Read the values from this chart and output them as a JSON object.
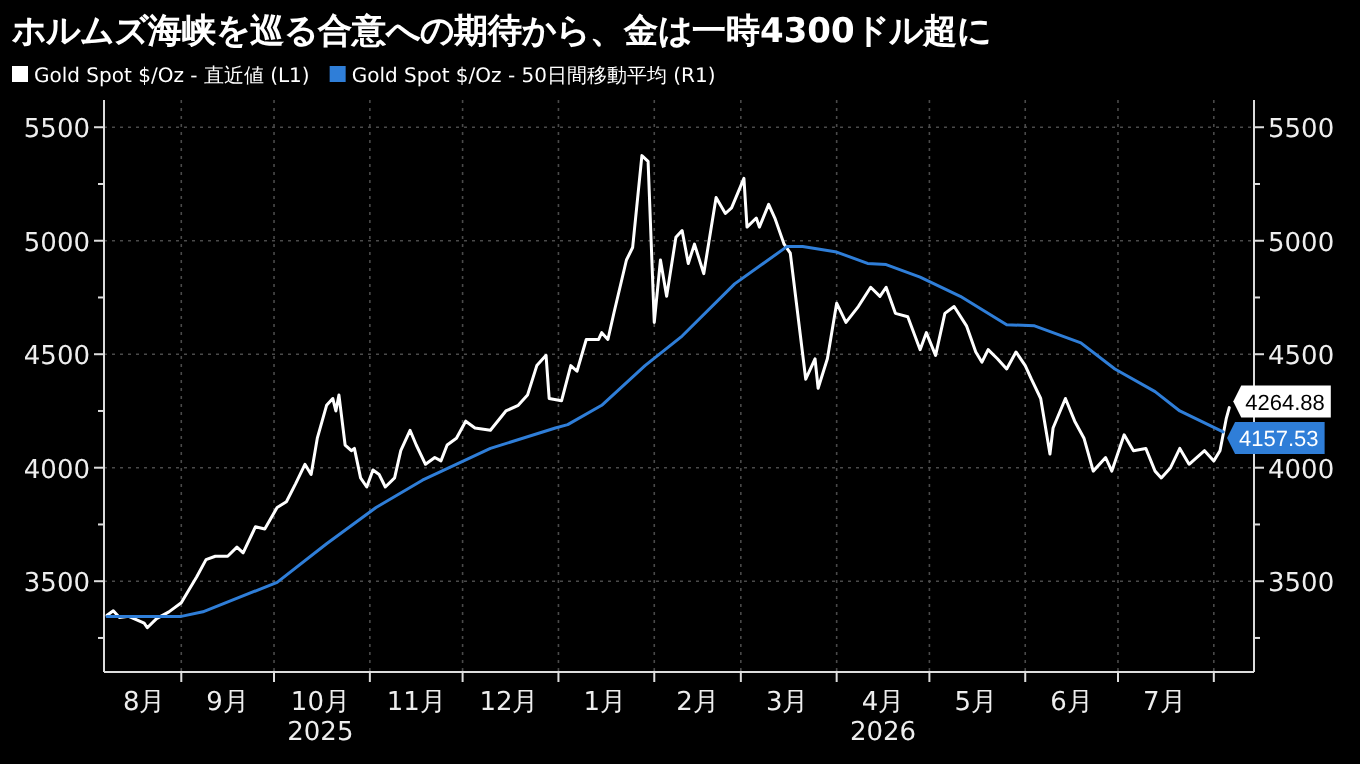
{
  "chart_data": {
    "type": "line",
    "title": "ホルムズ海峡を巡る合意への期待から、金は一時4300ドル超に",
    "legend": "top left",
    "grid": true,
    "marker": "none",
    "line_style": "solid",
    "xlim": [
      "2025-08-07",
      "2026-08-14"
    ],
    "xticks": [
      {
        "value": "2025-08-20",
        "label": "8月"
      },
      {
        "value": "2025-09-01",
        "label": null
      },
      {
        "value": "2025-09-16",
        "label": "9月"
      },
      {
        "value": "2025-10-01",
        "label": null
      },
      {
        "value": "2025-10-16",
        "label": "10月\n2025"
      },
      {
        "value": "2025-11-01",
        "label": null
      },
      {
        "value": "2025-11-16",
        "label": "11月"
      },
      {
        "value": "2025-12-01",
        "label": null
      },
      {
        "value": "2025-12-16",
        "label": "12月"
      },
      {
        "value": "2026-01-01",
        "label": null
      },
      {
        "value": "2026-01-16",
        "label": "1月"
      },
      {
        "value": "2026-02-01",
        "label": null
      },
      {
        "value": "2026-02-15",
        "label": "2月"
      },
      {
        "value": "2026-03-01",
        "label": null
      },
      {
        "value": "2026-03-16",
        "label": "3月"
      },
      {
        "value": "2026-04-01",
        "label": null
      },
      {
        "value": "2026-04-16",
        "label": "4月\n2026"
      },
      {
        "value": "2026-05-01",
        "label": null
      },
      {
        "value": "2026-05-16",
        "label": "5月"
      },
      {
        "value": "2026-06-01",
        "label": null
      },
      {
        "value": "2026-06-16",
        "label": "6月"
      },
      {
        "value": "2026-07-01",
        "label": null
      },
      {
        "value": "2026-07-16",
        "label": "7月"
      },
      {
        "value": "2026-08-01",
        "label": null
      }
    ],
    "ylim": [
      3100,
      5620
    ],
    "yticks": [
      {
        "value": 3250,
        "label": null
      },
      3500,
      {
        "value": 3750,
        "label": null
      },
      4000,
      {
        "value": 4250,
        "label": null
      },
      4500,
      {
        "value": 4750,
        "label": null
      },
      5000,
      {
        "value": 5250,
        "label": null
      },
      5500
    ],
    "y2lim": [
      3100,
      5620
    ],
    "y2ticks": [
      {
        "value": 3250,
        "label": null
      },
      3500,
      {
        "value": 3750,
        "label": null
      },
      4000,
      {
        "value": 4250,
        "label": null
      },
      4500,
      {
        "value": 4750,
        "label": null
      },
      5000,
      {
        "value": 5250,
        "label": null
      },
      5500
    ],
    "series": [
      {
        "name": "Gold Spot $/Oz - 直近値 (L1)",
        "color": "#ffffff",
        "axis": "y",
        "x": [
          "2025-08-08",
          "2025-08-10",
          "2025-08-12",
          "2025-08-15",
          "2025-08-20",
          "2025-08-21",
          "2025-08-24",
          "2025-08-28",
          "2025-09-01",
          "2025-09-06",
          "2025-09-09",
          "2025-09-12",
          "2025-09-16",
          "2025-09-19",
          "2025-09-21",
          "2025-09-25",
          "2025-09-28",
          "2025-10-02",
          "2025-10-05",
          "2025-10-08",
          "2025-10-11",
          "2025-10-13",
          "2025-10-15",
          "2025-10-18",
          "2025-10-20",
          "2025-10-21",
          "2025-10-22",
          "2025-10-24",
          "2025-10-26",
          "2025-10-27",
          "2025-10-29",
          "2025-10-31",
          "2025-11-02",
          "2025-11-04",
          "2025-11-06",
          "2025-11-09",
          "2025-11-11",
          "2025-11-14",
          "2025-11-16",
          "2025-11-19",
          "2025-11-22",
          "2025-11-24",
          "2025-11-26",
          "2025-11-29",
          "2025-12-02",
          "2025-12-05",
          "2025-12-10",
          "2025-12-15",
          "2025-12-19",
          "2025-12-22",
          "2025-12-25",
          "2025-12-28",
          "2025-12-29",
          "2026-01-02",
          "2026-01-05",
          "2026-01-07",
          "2026-01-10",
          "2026-01-14",
          "2026-01-15",
          "2026-01-17",
          "2026-01-19",
          "2026-01-23",
          "2026-01-25",
          "2026-01-28",
          "2026-01-30",
          "2026-02-01",
          "2026-02-03",
          "2026-02-05",
          "2026-02-08",
          "2026-02-10",
          "2026-02-12",
          "2026-02-14",
          "2026-02-17",
          "2026-02-21",
          "2026-02-24",
          "2026-02-26",
          "2026-03-02",
          "2026-03-03",
          "2026-03-06",
          "2026-03-07",
          "2026-03-10",
          "2026-03-12",
          "2026-03-15",
          "2026-03-17",
          "2026-03-22",
          "2026-03-25",
          "2026-03-26",
          "2026-03-29",
          "2026-04-01",
          "2026-04-04",
          "2026-04-08",
          "2026-04-12",
          "2026-04-15",
          "2026-04-17",
          "2026-04-20",
          "2026-04-24",
          "2026-04-28",
          "2026-04-30",
          "2026-05-03",
          "2026-05-06",
          "2026-05-09",
          "2026-05-13",
          "2026-05-16",
          "2026-05-18",
          "2026-05-20",
          "2026-05-23",
          "2026-05-26",
          "2026-05-29",
          "2026-06-01",
          "2026-06-03",
          "2026-06-06",
          "2026-06-09",
          "2026-06-10",
          "2026-06-14",
          "2026-06-17",
          "2026-06-20",
          "2026-06-23",
          "2026-06-27",
          "2026-06-29",
          "2026-07-03",
          "2026-07-06",
          "2026-07-10",
          "2026-07-13",
          "2026-07-15",
          "2026-07-18",
          "2026-07-21",
          "2026-07-24",
          "2026-07-29",
          "2026-08-01",
          "2026-08-03",
          "2026-08-05",
          "2026-08-06"
        ],
        "values": [
          3350,
          3370,
          3340,
          3345,
          3315,
          3295,
          3335,
          3365,
          3405,
          3520,
          3595,
          3610,
          3610,
          3650,
          3625,
          3740,
          3730,
          3825,
          3850,
          3930,
          4015,
          3970,
          4130,
          4275,
          4305,
          4250,
          4320,
          4100,
          4075,
          4085,
          3955,
          3915,
          3990,
          3970,
          3915,
          3955,
          4075,
          4165,
          4100,
          4015,
          4045,
          4030,
          4100,
          4130,
          4205,
          4175,
          4165,
          4250,
          4275,
          4320,
          4450,
          4495,
          4305,
          4295,
          4450,
          4425,
          4565,
          4565,
          4595,
          4565,
          4685,
          4915,
          4970,
          5375,
          5350,
          4640,
          4915,
          4755,
          5015,
          5045,
          4900,
          4985,
          4855,
          5190,
          5120,
          5145,
          5275,
          5060,
          5100,
          5060,
          5160,
          5100,
          4985,
          4945,
          4390,
          4480,
          4350,
          4480,
          4725,
          4640,
          4710,
          4795,
          4755,
          4795,
          4680,
          4665,
          4520,
          4595,
          4495,
          4680,
          4710,
          4625,
          4510,
          4465,
          4520,
          4480,
          4435,
          4510,
          4450,
          4390,
          4305,
          4060,
          4175,
          4305,
          4205,
          4130,
          3985,
          4045,
          3985,
          4145,
          4075,
          4085,
          3985,
          3955,
          4000,
          4085,
          4015,
          4075,
          4030,
          4075,
          4215,
          4264.88
        ],
        "value_labels": [
          null,
          null,
          null,
          null,
          null,
          null,
          null,
          null,
          null,
          null,
          null,
          null,
          null,
          null,
          null,
          null,
          null,
          null,
          null,
          null,
          null,
          null,
          null,
          null,
          null,
          null,
          null,
          null,
          null,
          null,
          null,
          null,
          null,
          null,
          null,
          null,
          null,
          null,
          null,
          null,
          null,
          null,
          null,
          null,
          null,
          null,
          null,
          null,
          null,
          null,
          null,
          null,
          null,
          null,
          null,
          null,
          null,
          null,
          null,
          null,
          null,
          null,
          null,
          null,
          null,
          null,
          null,
          null,
          null,
          null,
          null,
          null,
          null,
          null,
          null,
          null,
          null,
          null,
          null,
          null,
          null,
          null,
          null,
          null,
          null,
          null,
          null,
          null,
          null,
          null,
          null,
          null,
          null,
          null,
          null,
          null,
          null,
          null,
          null,
          null,
          null,
          null,
          null,
          null,
          null,
          null,
          null,
          null,
          null,
          null,
          null,
          null,
          null,
          null,
          null,
          null,
          null,
          null,
          null,
          null,
          null,
          null,
          null,
          null,
          null,
          null,
          null,
          null,
          null,
          null,
          null,
          "4264.88"
        ]
      },
      {
        "name": "Gold Spot $/Oz - 50日間移動平均 (R1)",
        "color": "#2f7ed8",
        "axis": "y2",
        "x": [
          "2025-08-08",
          "2025-09-01",
          "2025-09-08",
          "2025-10-02",
          "2025-10-18",
          "2025-11-03",
          "2025-11-18",
          "2025-12-10",
          "2025-12-31",
          "2026-01-04",
          "2026-01-15",
          "2026-01-29",
          "2026-02-10",
          "2026-02-27",
          "2026-03-16",
          "2026-03-21",
          "2026-04-01",
          "2026-04-11",
          "2026-04-17",
          "2026-04-28",
          "2026-05-11",
          "2026-05-26",
          "2026-06-04",
          "2026-06-19",
          "2026-06-30",
          "2026-07-13",
          "2026-07-21",
          "2026-08-04"
        ],
        "values": [
          3345,
          3345,
          3365,
          3495,
          3665,
          3825,
          3945,
          4085,
          4175,
          4190,
          4275,
          4450,
          4580,
          4810,
          4975,
          4975,
          4950,
          4900,
          4895,
          4840,
          4755,
          4630,
          4625,
          4550,
          4435,
          4335,
          4250,
          4157.53
        ],
        "value_labels": [
          null,
          null,
          null,
          null,
          null,
          null,
          null,
          null,
          null,
          null,
          null,
          null,
          null,
          null,
          null,
          null,
          null,
          null,
          null,
          null,
          null,
          null,
          null,
          null,
          null,
          null,
          null,
          "4157.53"
        ]
      }
    ]
  }
}
